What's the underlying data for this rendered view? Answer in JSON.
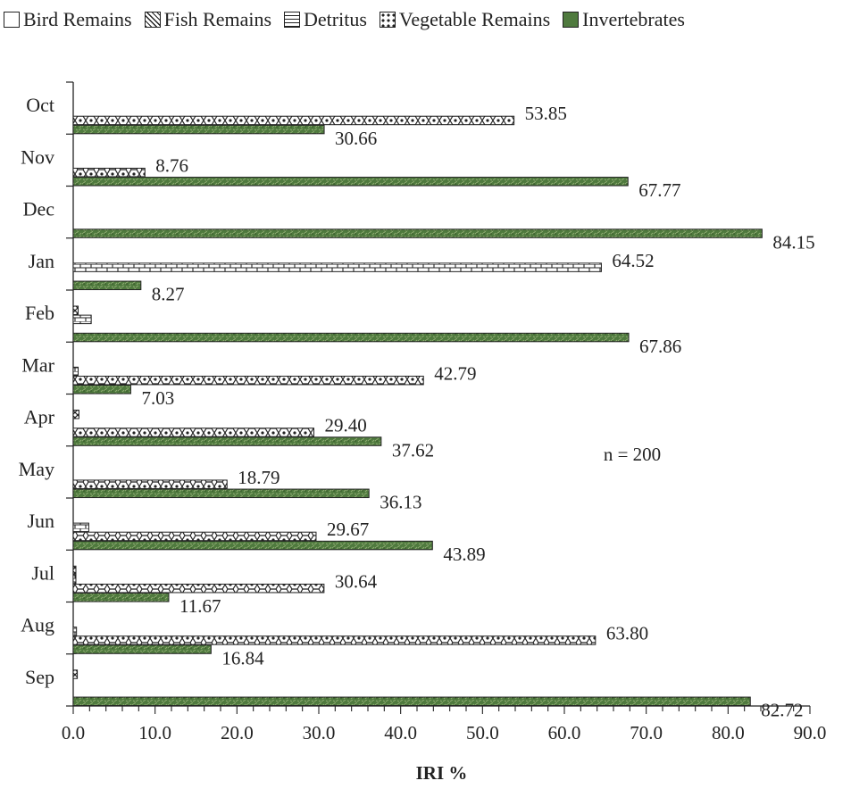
{
  "chart_data": {
    "type": "bar",
    "orientation": "horizontal",
    "categories": [
      "Oct",
      "Nov",
      "Dec",
      "Jan",
      "Feb",
      "Mar",
      "Apr",
      "May",
      "Jun",
      "Jul",
      "Aug",
      "Sep"
    ],
    "series": [
      {
        "name": "Bird Remains",
        "pattern": "none",
        "values": [
          0,
          0,
          0,
          0,
          0,
          0,
          0,
          0,
          0,
          0,
          0.3,
          0
        ]
      },
      {
        "name": "Fish Remains",
        "pattern": "crosshatch",
        "values": [
          0,
          0,
          0,
          0,
          0.6,
          0,
          0.7,
          0,
          0,
          0.3,
          0,
          0.5
        ]
      },
      {
        "name": "Detritus",
        "pattern": "brick",
        "values": [
          0,
          0,
          0,
          64.52,
          2.2,
          0.6,
          0,
          0,
          1.9,
          0.3,
          0.4,
          0
        ]
      },
      {
        "name": "Vegetable Remains",
        "pattern": "honeycomb",
        "values": [
          53.85,
          8.76,
          0,
          0,
          0,
          42.79,
          29.4,
          18.79,
          29.67,
          30.64,
          63.8,
          0
        ]
      },
      {
        "name": "Invertebrates",
        "pattern": "green-texture",
        "values": [
          30.66,
          67.77,
          84.15,
          8.27,
          67.86,
          7.03,
          37.62,
          36.13,
          43.89,
          11.67,
          16.84,
          82.72
        ]
      }
    ],
    "data_labels": [
      {
        "category": "Oct",
        "series": "Vegetable Remains",
        "text": "53.85"
      },
      {
        "category": "Oct",
        "series": "Invertebrates",
        "text": "30.66"
      },
      {
        "category": "Nov",
        "series": "Vegetable Remains",
        "text": "8.76"
      },
      {
        "category": "Nov",
        "series": "Invertebrates",
        "text": "67.77"
      },
      {
        "category": "Dec",
        "series": "Invertebrates",
        "text": "84.15"
      },
      {
        "category": "Jan",
        "series": "Detritus",
        "text": "64.52"
      },
      {
        "category": "Jan",
        "series": "Invertebrates",
        "text": "8.27"
      },
      {
        "category": "Feb",
        "series": "Invertebrates",
        "text": "67.86"
      },
      {
        "category": "Mar",
        "series": "Vegetable Remains",
        "text": "42.79"
      },
      {
        "category": "Mar",
        "series": "Invertebrates",
        "text": "7.03"
      },
      {
        "category": "Apr",
        "series": "Vegetable Remains",
        "text": "29.40"
      },
      {
        "category": "Apr",
        "series": "Invertebrates",
        "text": "37.62"
      },
      {
        "category": "May",
        "series": "Vegetable Remains",
        "text": "18.79"
      },
      {
        "category": "May",
        "series": "Invertebrates",
        "text": "36.13"
      },
      {
        "category": "Jun",
        "series": "Vegetable Remains",
        "text": "29.67"
      },
      {
        "category": "Jun",
        "series": "Invertebrates",
        "text": "43.89"
      },
      {
        "category": "Jul",
        "series": "Vegetable Remains",
        "text": "30.64"
      },
      {
        "category": "Jul",
        "series": "Invertebrates",
        "text": "11.67"
      },
      {
        "category": "Aug",
        "series": "Vegetable Remains",
        "text": "63.80"
      },
      {
        "category": "Aug",
        "series": "Invertebrates",
        "text": "16.84"
      },
      {
        "category": "Sep",
        "series": "Invertebrates",
        "text": "82.72"
      }
    ],
    "x_ticks": [
      "0.0",
      "10.0",
      "20.0",
      "30.0",
      "40.0",
      "50.0",
      "60.0",
      "70.0",
      "80.0",
      "90.0"
    ],
    "xlim": [
      0,
      90
    ],
    "xlabel": "IRI %",
    "ylabel": "",
    "annotation": "n = 200",
    "legend_position": "top",
    "grid": false,
    "colors": {
      "invertebrates": "#4f7a3e",
      "invertebrates_fleck": "#8eab72",
      "outline": "#222222"
    }
  }
}
